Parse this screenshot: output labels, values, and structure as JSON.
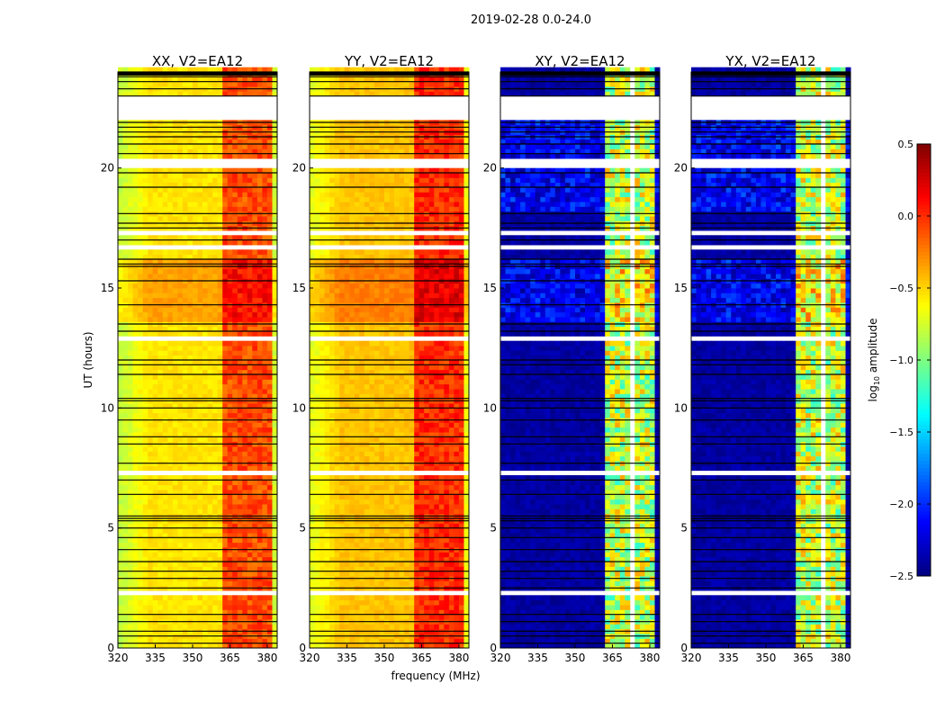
{
  "chart_data": {
    "type": "heatmap",
    "title": "2019-02-28 0.0-24.0",
    "xlabel": "frequency (MHz)",
    "ylabel": "UT (hours)",
    "xlim": [
      320,
      384
    ],
    "ylim": [
      0,
      24
    ],
    "xticks": [
      "320",
      "335",
      "350",
      "365",
      "380"
    ],
    "xtick_values": [
      320,
      335,
      350,
      365,
      380
    ],
    "yticks": [
      "0",
      "5",
      "10",
      "15",
      "20"
    ],
    "ytick_values": [
      0,
      5,
      10,
      15,
      20
    ],
    "colormap": "jet",
    "colorbar": {
      "label_main": "log",
      "label_sub": "10",
      "label_rest": " amplitude",
      "range": [
        -2.5,
        0.5
      ],
      "ticks": [
        "0.5",
        "0.0",
        "−0.5",
        "−1.0",
        "−1.5",
        "−2.0",
        "−2.5"
      ],
      "tick_values": [
        0.5,
        0.0,
        -0.5,
        -1.0,
        -1.5,
        -2.0,
        -2.5
      ]
    },
    "panels": [
      {
        "title": "XX, V2=EA12",
        "kind": "parallel",
        "base_level": -0.6,
        "band_level": -0.1,
        "band_MHz": [
          362,
          381
        ]
      },
      {
        "title": "YY, V2=EA12",
        "kind": "parallel",
        "base_level": -0.5,
        "band_level": 0.0,
        "band_MHz": [
          362,
          381
        ]
      },
      {
        "title": "XY, V2=EA12",
        "kind": "cross",
        "base_level": -2.4,
        "band_level": -0.8,
        "band_MHz": [
          362,
          381
        ]
      },
      {
        "title": "YX, V2=EA12",
        "kind": "cross",
        "base_level": -2.4,
        "band_level": -0.8,
        "band_MHz": [
          362,
          381
        ]
      }
    ],
    "flagged_hours": [
      [
        21.9,
        23.0
      ],
      [
        19.9,
        20.3
      ],
      [
        17.2,
        17.4
      ],
      [
        16.6,
        16.8
      ],
      [
        12.7,
        12.9
      ],
      [
        7.3,
        7.5
      ],
      [
        2.2,
        2.4
      ]
    ],
    "separator_hours": [
      0.2,
      0.5,
      0.7,
      1.1,
      1.4,
      2.5,
      2.9,
      3.2,
      3.6,
      4.1,
      4.6,
      5.0,
      5.3,
      5.4,
      5.5,
      6.4,
      7.0,
      7.7,
      8.5,
      8.8,
      9.5,
      10.0,
      10.3,
      10.4,
      11.4,
      11.8,
      12.0,
      13.2,
      13.5,
      14.3,
      15.3,
      15.9,
      16.0,
      16.2,
      17.0,
      17.5,
      17.7,
      18.1,
      19.2,
      19.8,
      20.6,
      21.0,
      21.3,
      21.5,
      21.7,
      21.9,
      23.0,
      23.3,
      23.6,
      23.8,
      24.0
    ]
  }
}
